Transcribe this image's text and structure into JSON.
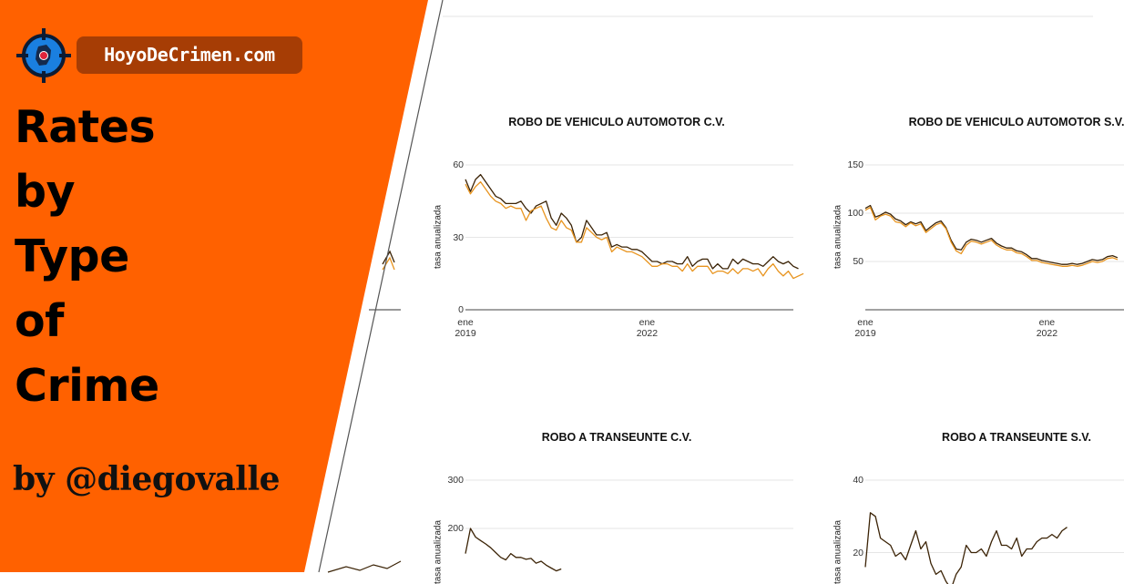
{
  "brand": {
    "site_name": "HoyoDeCrimen.com",
    "title_lines": [
      "Rates",
      "by",
      "Type",
      "of",
      "Crime"
    ],
    "byline": "by @diegovalle",
    "colors": {
      "orange": "#ff6100",
      "badge": "#a63d05",
      "logo_blue": "#1a7fe0",
      "logo_red": "#e0243a"
    },
    "logo_icon": "crosshair-target-icon"
  },
  "chart_data": [
    {
      "type": "line",
      "title": "ROBO DE VEHICULO AUTOMOTOR C.V.",
      "ylabel": "tasa anualizada",
      "yticks": [
        0,
        30,
        60
      ],
      "ylim": [
        0,
        60
      ],
      "xticks": [
        {
          "x": 0,
          "line1": "ene",
          "line2": "2019"
        },
        {
          "x": 36,
          "line1": "ene",
          "line2": "2022"
        }
      ],
      "xlim": [
        0,
        65
      ],
      "series": [
        {
          "color": "#3b2306",
          "values": [
            54,
            49,
            54,
            56,
            53,
            50,
            47,
            46,
            44,
            44,
            44,
            45,
            42,
            40,
            43,
            44,
            45,
            38,
            35,
            40,
            38,
            35,
            28,
            30,
            37,
            34,
            31,
            31,
            32,
            26,
            27,
            26,
            26,
            25,
            25,
            24,
            22,
            20,
            20,
            19,
            20,
            20,
            19,
            19,
            22,
            18,
            20,
            21,
            21,
            17,
            19,
            17,
            17,
            21,
            19,
            21,
            20,
            19,
            19,
            18,
            20,
            22,
            20,
            19,
            20,
            18,
            17
          ]
        },
        {
          "color": "#e8941e",
          "values": [
            52,
            48,
            51,
            53,
            50,
            47,
            45,
            44,
            42,
            43,
            42,
            42,
            37,
            41,
            42,
            43,
            38,
            34,
            33,
            37,
            34,
            33,
            28,
            28,
            34,
            32,
            30,
            29,
            30,
            24,
            26,
            25,
            24,
            24,
            23,
            22,
            20,
            18,
            18,
            19,
            19,
            18,
            18,
            16,
            19,
            16,
            18,
            18,
            18,
            15,
            16,
            16,
            15,
            17,
            15,
            17,
            17,
            16,
            17,
            14,
            17,
            19,
            16,
            14,
            16,
            13,
            14,
            15
          ]
        }
      ]
    },
    {
      "type": "line",
      "title": "ROBO DE VEHICULO AUTOMOTOR S.V.",
      "ylabel": "tasa anualizada",
      "yticks": [
        50,
        100,
        150
      ],
      "ylim": [
        0,
        150
      ],
      "xticks": [
        {
          "x": 0,
          "line1": "ene",
          "line2": "2019"
        },
        {
          "x": 36,
          "line1": "ene",
          "line2": "2022"
        }
      ],
      "xlim": [
        0,
        65
      ],
      "series": [
        {
          "color": "#3b2306",
          "values": [
            105,
            108,
            96,
            98,
            101,
            99,
            94,
            92,
            88,
            91,
            89,
            91,
            82,
            86,
            90,
            92,
            85,
            72,
            63,
            62,
            70,
            73,
            72,
            70,
            72,
            74,
            69,
            66,
            64,
            64,
            61,
            60,
            57,
            53,
            53,
            51,
            50,
            49,
            48,
            47,
            47,
            48,
            47,
            48,
            50,
            52,
            51,
            52,
            55,
            56,
            54
          ]
        },
        {
          "color": "#e8941e",
          "values": [
            103,
            106,
            93,
            97,
            99,
            97,
            91,
            90,
            86,
            90,
            87,
            89,
            80,
            84,
            88,
            90,
            84,
            70,
            61,
            58,
            67,
            71,
            70,
            68,
            70,
            72,
            67,
            64,
            62,
            62,
            59,
            58,
            55,
            51,
            51,
            49,
            48,
            47,
            46,
            45,
            45,
            46,
            45,
            46,
            48,
            50,
            49,
            50,
            53,
            54,
            52
          ]
        }
      ]
    },
    {
      "type": "line",
      "title": "ROBO A TRANSEUNTE C.V.",
      "ylabel": "tasa anualizada",
      "yticks": [
        200,
        300
      ],
      "ylim": [
        0,
        300
      ],
      "xlim": [
        0,
        65
      ],
      "series": [
        {
          "color": "#3b2306",
          "values": [
            148,
            200,
            182,
            175,
            168,
            160,
            150,
            140,
            135,
            148,
            140,
            140,
            136,
            138,
            128,
            132,
            124,
            118,
            112,
            116
          ]
        }
      ]
    },
    {
      "type": "line",
      "title": "ROBO A TRANSEUNTE S.V.",
      "ylabel": "tasa anualizada",
      "yticks": [
        20,
        40
      ],
      "ylim": [
        0,
        40
      ],
      "xlim": [
        0,
        65
      ],
      "series": [
        {
          "color": "#3b2306",
          "values": [
            16,
            31,
            30,
            24,
            23,
            22,
            19,
            20,
            18,
            22,
            26,
            21,
            23,
            17,
            14,
            15,
            12,
            10,
            14,
            16,
            22,
            20,
            20,
            21,
            19,
            23,
            26,
            22,
            22,
            21,
            24,
            19,
            21,
            21,
            23,
            24,
            24,
            25,
            24,
            26,
            27
          ]
        }
      ]
    }
  ]
}
